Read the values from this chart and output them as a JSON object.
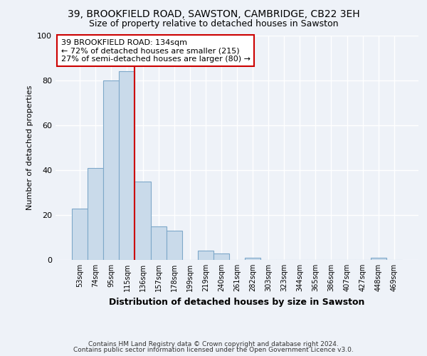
{
  "title": "39, BROOKFIELD ROAD, SAWSTON, CAMBRIDGE, CB22 3EH",
  "subtitle": "Size of property relative to detached houses in Sawston",
  "xlabel": "Distribution of detached houses by size in Sawston",
  "ylabel": "Number of detached properties",
  "footnote1": "Contains HM Land Registry data © Crown copyright and database right 2024.",
  "footnote2": "Contains public sector information licensed under the Open Government Licence v3.0.",
  "bin_labels": [
    "53sqm",
    "74sqm",
    "95sqm",
    "115sqm",
    "136sqm",
    "157sqm",
    "178sqm",
    "199sqm",
    "219sqm",
    "240sqm",
    "261sqm",
    "282sqm",
    "303sqm",
    "323sqm",
    "344sqm",
    "365sqm",
    "386sqm",
    "407sqm",
    "427sqm",
    "448sqm",
    "469sqm"
  ],
  "values": [
    23,
    41,
    80,
    84,
    35,
    15,
    13,
    0,
    4,
    3,
    0,
    1,
    0,
    0,
    0,
    0,
    0,
    0,
    0,
    1,
    0
  ],
  "bar_color": "#c9daea",
  "bar_edge_color": "#7ea8c9",
  "highlight_label": "39 BROOKFIELD ROAD: 134sqm",
  "highlight_line1": "← 72% of detached houses are smaller (215)",
  "highlight_line2": "27% of semi-detached houses are larger (80) →",
  "annotation_box_facecolor": "#ffffff",
  "annotation_border_color": "#cc0000",
  "vline_color": "#cc0000",
  "vline_x_idx": 4,
  "ylim": [
    0,
    100
  ],
  "background_color": "#eef2f8",
  "grid_color": "#ffffff",
  "title_fontsize": 10,
  "subtitle_fontsize": 9
}
